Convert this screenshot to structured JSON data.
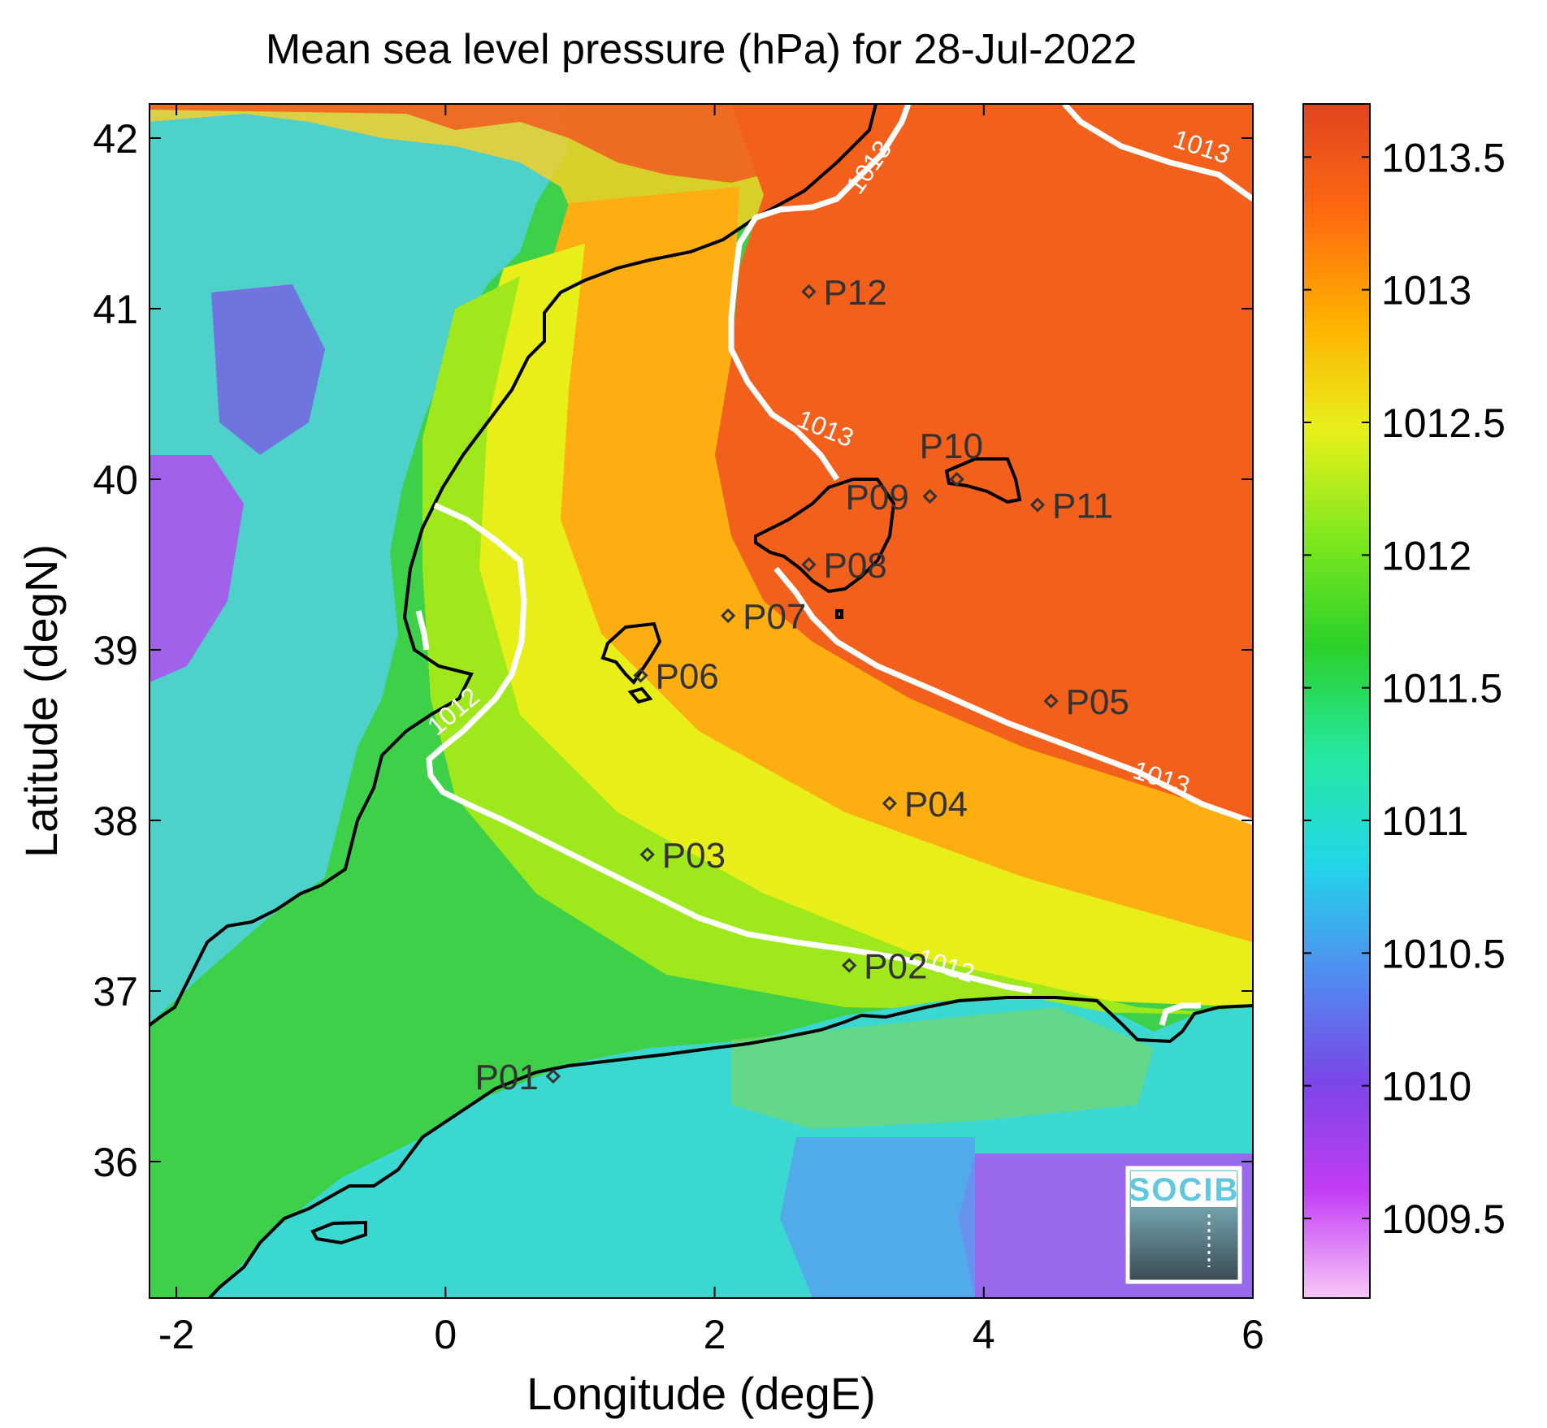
{
  "title": "Mean sea level pressure (hPa) for 28-Jul-2022",
  "xlabel": "Longitude (degE)",
  "ylabel": "Latitude (degN)",
  "x_axis": {
    "ticks": [
      -2,
      0,
      2,
      4,
      6
    ],
    "tick_labels": [
      "-2",
      "0",
      "2",
      "4",
      "6"
    ],
    "range": [
      -2.2,
      6.0
    ]
  },
  "y_axis": {
    "ticks": [
      36,
      37,
      38,
      39,
      40,
      41,
      42
    ],
    "tick_labels": [
      "36",
      "37",
      "38",
      "39",
      "40",
      "41",
      "42"
    ],
    "range": [
      35.2,
      42.2
    ]
  },
  "colorbar": {
    "range": [
      1009.2,
      1013.7
    ],
    "ticks": [
      1009.5,
      1010,
      1010.5,
      1011,
      1011.5,
      1012,
      1012.5,
      1013,
      1013.5
    ],
    "tick_labels": [
      "1009.5",
      "1010",
      "1010.5",
      "1011",
      "1011.5",
      "1012",
      "1012.5",
      "1013",
      "1013.5"
    ],
    "colors": [
      "#f7c6f7",
      "#c23cf5",
      "#7a46e8",
      "#4f8ef0",
      "#22d6e8",
      "#25e8a0",
      "#2ad02a",
      "#7ee81e",
      "#e8f01a",
      "#ffb000",
      "#ff6a10",
      "#e04420"
    ]
  },
  "points": [
    {
      "label": "P01",
      "lon": 0.8,
      "lat": 36.5
    },
    {
      "label": "P02",
      "lon": 3.0,
      "lat": 37.15
    },
    {
      "label": "P03",
      "lon": 1.5,
      "lat": 37.8
    },
    {
      "label": "P04",
      "lon": 3.3,
      "lat": 38.1
    },
    {
      "label": "P05",
      "lon": 4.5,
      "lat": 38.7
    },
    {
      "label": "P06",
      "lon": 1.45,
      "lat": 38.85
    },
    {
      "label": "P07",
      "lon": 2.1,
      "lat": 39.2
    },
    {
      "label": "P08",
      "lon": 2.7,
      "lat": 39.5
    },
    {
      "label": "P09",
      "lon": 3.6,
      "lat": 39.9
    },
    {
      "label": "P10",
      "lon": 3.8,
      "lat": 40.0
    },
    {
      "label": "P11",
      "lon": 4.4,
      "lat": 39.85
    },
    {
      "label": "P12",
      "lon": 2.7,
      "lat": 41.1
    }
  ],
  "contour_labels": [
    {
      "text": "1013",
      "lon": 3.2,
      "lat": 41.8,
      "angle": -55
    },
    {
      "text": "1013",
      "lon": 5.6,
      "lat": 41.9,
      "angle": 18
    },
    {
      "text": "1013",
      "lon": 2.8,
      "lat": 40.25,
      "angle": 22
    },
    {
      "text": "1013",
      "lon": 5.3,
      "lat": 38.2,
      "angle": 18
    },
    {
      "text": "1012",
      "lon": 0.1,
      "lat": 38.6,
      "angle": -40
    },
    {
      "text": "1012",
      "lon": 3.7,
      "lat": 37.1,
      "angle": 18
    }
  ],
  "logo": {
    "text": "SOCIB"
  },
  "map_description_legend": "Gridded field of mean sea level pressure over the western Mediterranean with coastlines and white isobars"
}
